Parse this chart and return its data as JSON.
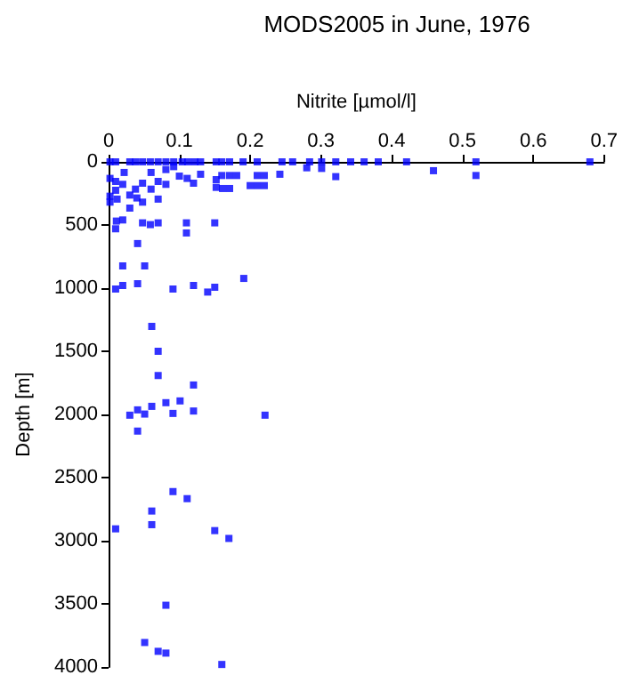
{
  "chart_data": {
    "type": "scatter",
    "title": "MODS2005 in June, 1976",
    "xlabel": "Nitrite [µmol/l]",
    "ylabel": "Depth [m]",
    "xlim": [
      0,
      0.7
    ],
    "xticks": [
      0,
      0.1,
      0.2,
      0.3,
      0.4,
      0.5,
      0.6,
      0.7
    ],
    "ylim": [
      4000,
      0
    ],
    "yticks": [
      0,
      500,
      1000,
      1500,
      2000,
      2500,
      3000,
      3500,
      4000
    ],
    "grid": false,
    "marker": "square",
    "series": [
      {
        "color": "#0000ff",
        "x": [
          0.002,
          0.01,
          0.03,
          0.038,
          0.048,
          0.059,
          0.07,
          0.081,
          0.092,
          0.104,
          0.112,
          0.122,
          0.13,
          0.152,
          0.16,
          0.171,
          0.19,
          0.21,
          0.245,
          0.26,
          0.284,
          0.301,
          0.321,
          0.342,
          0.361,
          0.381,
          0.421,
          0.519,
          0.68,
          0.459,
          0.519,
          0.321,
          0.301,
          0.28,
          0.242,
          0.21,
          0.22,
          0.2,
          0.21,
          0.22,
          0.171,
          0.181,
          0.16,
          0.152,
          0.152,
          0.161,
          0.171,
          0.13,
          0.12,
          0.111,
          0.1,
          0.092,
          0.081,
          0.081,
          0.07,
          0.07,
          0.06,
          0.06,
          0.048,
          0.038,
          0.03,
          0.03,
          0.04,
          0.048,
          0.022,
          0.01,
          0.002,
          0.01,
          0.002,
          0.02,
          0.011,
          0.02,
          0.01,
          0.048,
          0.059,
          0.07,
          0.11,
          0.11,
          0.15,
          0.002,
          0.012,
          0.041,
          0.02,
          0.051,
          0.01,
          0.02,
          0.041,
          0.091,
          0.12,
          0.14,
          0.15,
          0.191,
          0.061,
          0.07,
          0.07,
          0.12,
          0.03,
          0.041,
          0.051,
          0.061,
          0.081,
          0.101,
          0.091,
          0.12,
          0.221,
          0.041,
          0.091,
          0.111,
          0.061,
          0.061,
          0.01,
          0.15,
          0.17,
          0.081,
          0.051,
          0.07,
          0.081,
          0.16
        ],
        "values": [
          0,
          0,
          0,
          0,
          0,
          0,
          0,
          0,
          0,
          0,
          0,
          0,
          0,
          0,
          0,
          0,
          0,
          0,
          0,
          0,
          0,
          0,
          0,
          0,
          0,
          0,
          0,
          0,
          0,
          70,
          108,
          117,
          52,
          47,
          98,
          108,
          108,
          188,
          188,
          188,
          108,
          108,
          108,
          141,
          202,
          211,
          211,
          98,
          169,
          131,
          113,
          38,
          61,
          178,
          155,
          295,
          216,
          84,
          169,
          216,
          263,
          366,
          286,
          319,
          84,
          155,
          272,
          225,
          131,
          178,
          469,
          460,
          530,
          483,
          497,
          483,
          483,
          563,
          483,
          319,
          295,
          647,
          824,
          824,
          1007,
          979,
          965,
          1007,
          979,
          1031,
          993,
          923,
          1303,
          1500,
          1692,
          1767,
          2006,
          1964,
          1997,
          1936,
          1907,
          1893,
          1992,
          1973,
          2006,
          2132,
          2611,
          2667,
          2765,
          2873,
          2906,
          2920,
          2982,
          3511,
          3806,
          3876,
          3890,
          3980
        ]
      }
    ]
  }
}
